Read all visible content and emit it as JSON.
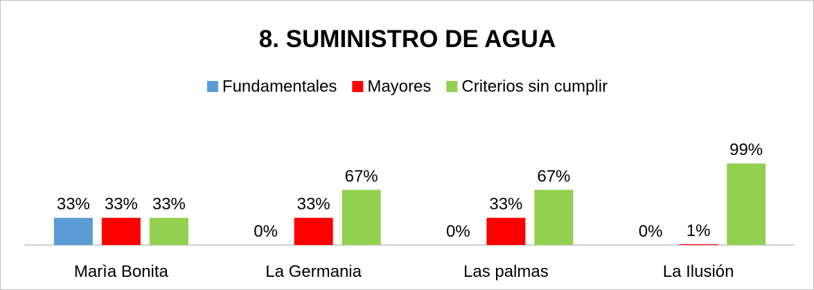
{
  "chart_data": {
    "type": "bar",
    "title": "8. SUMINISTRO DE AGUA",
    "categories": [
      "Marìa Bonita",
      "La Germania",
      "Las palmas",
      "La Ilusión"
    ],
    "series": [
      {
        "name": "Fundamentales",
        "color": "#5b9bd5",
        "values": [
          33,
          0,
          0,
          0
        ],
        "value_labels": [
          "33%",
          "0%",
          "0%",
          "0%"
        ]
      },
      {
        "name": "Mayores",
        "color": "#ff0000",
        "values": [
          33,
          33,
          33,
          1
        ],
        "value_labels": [
          "33%",
          "33%",
          "33%",
          "1%"
        ]
      },
      {
        "name": "Criterios sin cumplir",
        "color": "#92d050",
        "values": [
          33,
          67,
          67,
          99
        ],
        "value_labels": [
          "33%",
          "67%",
          "67%",
          "99%"
        ]
      }
    ],
    "legend": "top"
  }
}
